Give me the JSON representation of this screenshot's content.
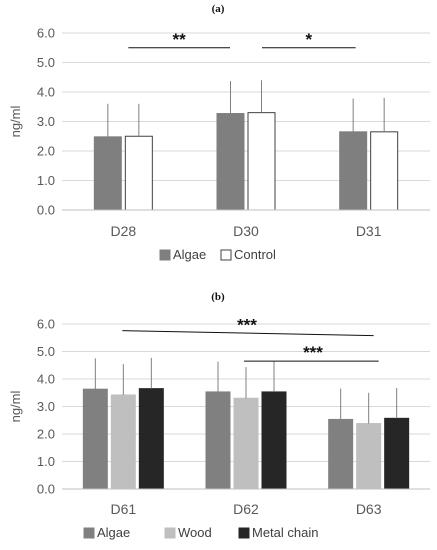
{
  "chart_data": [
    {
      "type": "bar",
      "panel": "(a)",
      "ylabel": "ng/ml",
      "ylim": [
        0,
        6
      ],
      "yticks": [
        "0.0",
        "1.0",
        "2.0",
        "3.0",
        "4.0",
        "5.0",
        "6.0"
      ],
      "categories": [
        "D28",
        "D30",
        "D31"
      ],
      "series": [
        {
          "name": "Algae",
          "values": [
            2.48,
            3.27,
            2.65
          ],
          "errors": [
            1.12,
            1.1,
            1.13
          ],
          "color": "#7f7f7f",
          "stroke": "#7f7f7f"
        },
        {
          "name": "Control",
          "values": [
            2.5,
            3.3,
            2.65
          ],
          "errors": [
            1.1,
            1.1,
            1.15
          ],
          "color": "#ffffff",
          "stroke": "#404040"
        }
      ],
      "significance": [
        {
          "from": 0,
          "to": 1,
          "y": 5.5,
          "label": "**"
        },
        {
          "from": 1,
          "to": 2,
          "y": 5.5,
          "label": "*"
        }
      ],
      "legend_position": "bottom"
    },
    {
      "type": "bar",
      "panel": "(b)",
      "ylabel": "ng/ml",
      "ylim": [
        0,
        6
      ],
      "yticks": [
        "0.0",
        "1.0",
        "2.0",
        "3.0",
        "4.0",
        "5.0",
        "6.0"
      ],
      "categories": [
        "D61",
        "D62",
        "D63"
      ],
      "series": [
        {
          "name": "Algae",
          "values": [
            3.63,
            3.53,
            2.53
          ],
          "errors": [
            1.12,
            1.1,
            1.12
          ],
          "color": "#808080",
          "stroke": "#808080"
        },
        {
          "name": "Wood",
          "values": [
            3.42,
            3.3,
            2.38
          ],
          "errors": [
            1.12,
            1.13,
            1.12
          ],
          "color": "#bfbfbf",
          "stroke": "#bfbfbf"
        },
        {
          "name": "Metal chain",
          "values": [
            3.65,
            3.53,
            2.57
          ],
          "errors": [
            1.12,
            1.12,
            1.1
          ],
          "color": "#262626",
          "stroke": "#262626"
        }
      ],
      "significance": [
        {
          "from": 0,
          "to": 2,
          "y": 5.65,
          "label": "***"
        },
        {
          "from": 1,
          "to": 2,
          "y": 4.65,
          "label": "***"
        }
      ],
      "legend_position": "bottom"
    }
  ]
}
